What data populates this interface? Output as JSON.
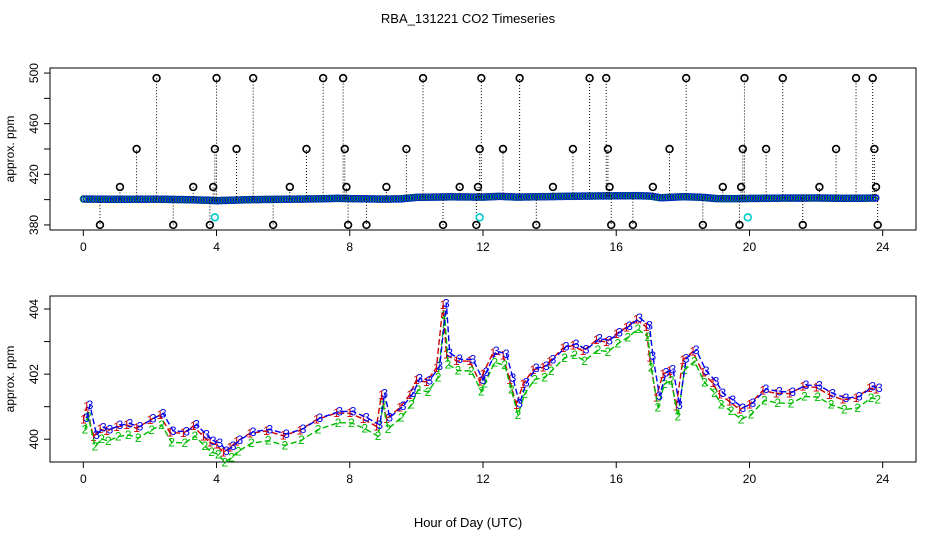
{
  "chart_data": [
    {
      "type": "scatter",
      "title": "RBA_131221  CO2 Timeseries",
      "ylabel": "approx. ppm",
      "xlim": [
        -1,
        25
      ],
      "ylim": [
        376,
        504
      ],
      "xticks": [
        0,
        4,
        8,
        12,
        16,
        20,
        24
      ],
      "yticks": [
        380,
        420,
        460,
        500
      ],
      "yticks_minor": [
        400,
        440,
        480
      ],
      "grid": false,
      "colors": {
        "spikes": "#000000",
        "series_blue": "#0000ee",
        "series_green": "#00bb00",
        "series_red": "#cc0000",
        "low": "#00cccc"
      },
      "baseline": [
        [
          0.0,
          400.5
        ],
        [
          1.0,
          400.2
        ],
        [
          2.0,
          400.4
        ],
        [
          3.0,
          400.0
        ],
        [
          3.6,
          399.6
        ],
        [
          4.0,
          399.2
        ],
        [
          5.0,
          400.0
        ],
        [
          6.0,
          400.3
        ],
        [
          7.0,
          400.6
        ],
        [
          7.6,
          401.0
        ],
        [
          8.0,
          400.8
        ],
        [
          9.0,
          400.4
        ],
        [
          9.5,
          400.6
        ],
        [
          10.0,
          401.8
        ],
        [
          11.0,
          402.2
        ],
        [
          12.0,
          402.0
        ],
        [
          12.5,
          402.6
        ],
        [
          13.0,
          402.0
        ],
        [
          14.0,
          402.4
        ],
        [
          15.0,
          402.8
        ],
        [
          16.0,
          403.0
        ],
        [
          16.6,
          403.1
        ],
        [
          17.0,
          402.8
        ],
        [
          17.3,
          401.5
        ],
        [
          18.0,
          402.3
        ],
        [
          18.5,
          401.9
        ],
        [
          19.0,
          400.8
        ],
        [
          19.6,
          400.8
        ],
        [
          20.0,
          400.9
        ],
        [
          21.0,
          401.2
        ],
        [
          22.0,
          401.3
        ],
        [
          23.0,
          401.0
        ],
        [
          23.8,
          401.3
        ]
      ],
      "spikes": [
        [
          0.5,
          380
        ],
        [
          1.1,
          410
        ],
        [
          1.6,
          440
        ],
        [
          2.2,
          496
        ],
        [
          2.7,
          380
        ],
        [
          3.3,
          410
        ],
        [
          3.8,
          380
        ],
        [
          3.9,
          410
        ],
        [
          3.95,
          440
        ],
        [
          4.0,
          496
        ],
        [
          4.6,
          440
        ],
        [
          5.1,
          496
        ],
        [
          5.7,
          380
        ],
        [
          6.2,
          410
        ],
        [
          6.7,
          440
        ],
        [
          7.2,
          496
        ],
        [
          7.8,
          496
        ],
        [
          7.85,
          440
        ],
        [
          7.9,
          410
        ],
        [
          7.95,
          380
        ],
        [
          8.5,
          380
        ],
        [
          9.1,
          410
        ],
        [
          9.7,
          440
        ],
        [
          10.2,
          496
        ],
        [
          10.8,
          380
        ],
        [
          11.3,
          410
        ],
        [
          11.8,
          380
        ],
        [
          11.85,
          410
        ],
        [
          11.9,
          440
        ],
        [
          11.95,
          496
        ],
        [
          12.6,
          440
        ],
        [
          13.1,
          496
        ],
        [
          13.6,
          380
        ],
        [
          14.1,
          410
        ],
        [
          14.7,
          440
        ],
        [
          15.2,
          496
        ],
        [
          15.7,
          496
        ],
        [
          15.75,
          440
        ],
        [
          15.8,
          410
        ],
        [
          15.85,
          380
        ],
        [
          16.5,
          380
        ],
        [
          17.1,
          410
        ],
        [
          17.6,
          440
        ],
        [
          18.1,
          496
        ],
        [
          18.6,
          380
        ],
        [
          19.2,
          410
        ],
        [
          19.7,
          380
        ],
        [
          19.75,
          410
        ],
        [
          19.8,
          440
        ],
        [
          19.85,
          496
        ],
        [
          20.5,
          440
        ],
        [
          21.0,
          496
        ],
        [
          21.6,
          380
        ],
        [
          22.1,
          410
        ],
        [
          22.6,
          440
        ],
        [
          23.2,
          496
        ],
        [
          23.7,
          496
        ],
        [
          23.75,
          440
        ],
        [
          23.8,
          410
        ],
        [
          23.85,
          380
        ]
      ],
      "low_points": [
        [
          3.95,
          386
        ],
        [
          11.9,
          386
        ],
        [
          19.95,
          386
        ]
      ]
    },
    {
      "type": "line",
      "ylabel": "approx. ppm",
      "xlabel": "Hour of Day (UTC)",
      "xlim": [
        -1,
        25
      ],
      "ylim": [
        399.3,
        404.4
      ],
      "xticks": [
        0,
        4,
        8,
        12,
        16,
        20,
        24
      ],
      "yticks": [
        400,
        402,
        404
      ],
      "yticks_minor": [
        401,
        403
      ],
      "grid": false,
      "series": [
        {
          "name": "1",
          "color": "#cc0000",
          "offset": 0.1
        },
        {
          "name": "2",
          "color": "#00bb00",
          "offset": -0.2
        },
        {
          "name": "3",
          "color": "#0000ee",
          "offset": 0.15
        }
      ],
      "points": [
        [
          0.0,
          400.5
        ],
        [
          0.1,
          400.8
        ],
        [
          0.3,
          400.0
        ],
        [
          0.5,
          400.3
        ],
        [
          0.7,
          400.1
        ],
        [
          1.0,
          400.2
        ],
        [
          1.3,
          400.4
        ],
        [
          1.6,
          400.3
        ],
        [
          2.0,
          400.4
        ],
        [
          2.3,
          400.6
        ],
        [
          2.6,
          400.2
        ],
        [
          3.0,
          400.1
        ],
        [
          3.3,
          400.2
        ],
        [
          3.6,
          400.0
        ],
        [
          3.8,
          399.9
        ],
        [
          4.0,
          399.7
        ],
        [
          4.2,
          399.4
        ],
        [
          4.4,
          399.7
        ],
        [
          4.6,
          399.9
        ],
        [
          5.0,
          400.0
        ],
        [
          5.5,
          400.1
        ],
        [
          6.0,
          400.1
        ],
        [
          6.5,
          400.2
        ],
        [
          7.0,
          400.4
        ],
        [
          7.6,
          400.7
        ],
        [
          8.0,
          400.8
        ],
        [
          8.4,
          400.5
        ],
        [
          8.8,
          400.2
        ],
        [
          8.95,
          401.3
        ],
        [
          9.1,
          400.6
        ],
        [
          9.5,
          400.8
        ],
        [
          9.8,
          401.2
        ],
        [
          10.0,
          401.8
        ],
        [
          10.3,
          401.7
        ],
        [
          10.6,
          402.0
        ],
        [
          10.8,
          404.0
        ],
        [
          10.9,
          402.6
        ],
        [
          11.2,
          402.3
        ],
        [
          11.6,
          402.2
        ],
        [
          11.9,
          401.7
        ],
        [
          12.0,
          402.0
        ],
        [
          12.3,
          402.5
        ],
        [
          12.6,
          402.4
        ],
        [
          12.8,
          401.8
        ],
        [
          13.0,
          401.0
        ],
        [
          13.2,
          401.5
        ],
        [
          13.5,
          402.0
        ],
        [
          13.8,
          402.2
        ],
        [
          14.0,
          402.3
        ],
        [
          14.4,
          402.6
        ],
        [
          14.7,
          402.8
        ],
        [
          15.0,
          402.7
        ],
        [
          15.4,
          402.9
        ],
        [
          15.7,
          402.8
        ],
        [
          16.0,
          403.2
        ],
        [
          16.3,
          403.4
        ],
        [
          16.6,
          403.5
        ],
        [
          16.9,
          403.3
        ],
        [
          17.0,
          402.5
        ],
        [
          17.2,
          401.2
        ],
        [
          17.4,
          401.8
        ],
        [
          17.6,
          402.0
        ],
        [
          17.8,
          401.0
        ],
        [
          18.0,
          402.3
        ],
        [
          18.3,
          402.5
        ],
        [
          18.6,
          402.0
        ],
        [
          18.9,
          401.7
        ],
        [
          19.1,
          401.2
        ],
        [
          19.4,
          401.0
        ],
        [
          19.7,
          400.9
        ],
        [
          20.0,
          401.0
        ],
        [
          20.4,
          401.3
        ],
        [
          20.8,
          401.3
        ],
        [
          21.2,
          401.4
        ],
        [
          21.6,
          401.5
        ],
        [
          22.0,
          401.4
        ],
        [
          22.4,
          401.3
        ],
        [
          22.8,
          401.2
        ],
        [
          23.2,
          401.1
        ],
        [
          23.6,
          401.4
        ],
        [
          23.8,
          401.5
        ]
      ]
    }
  ]
}
